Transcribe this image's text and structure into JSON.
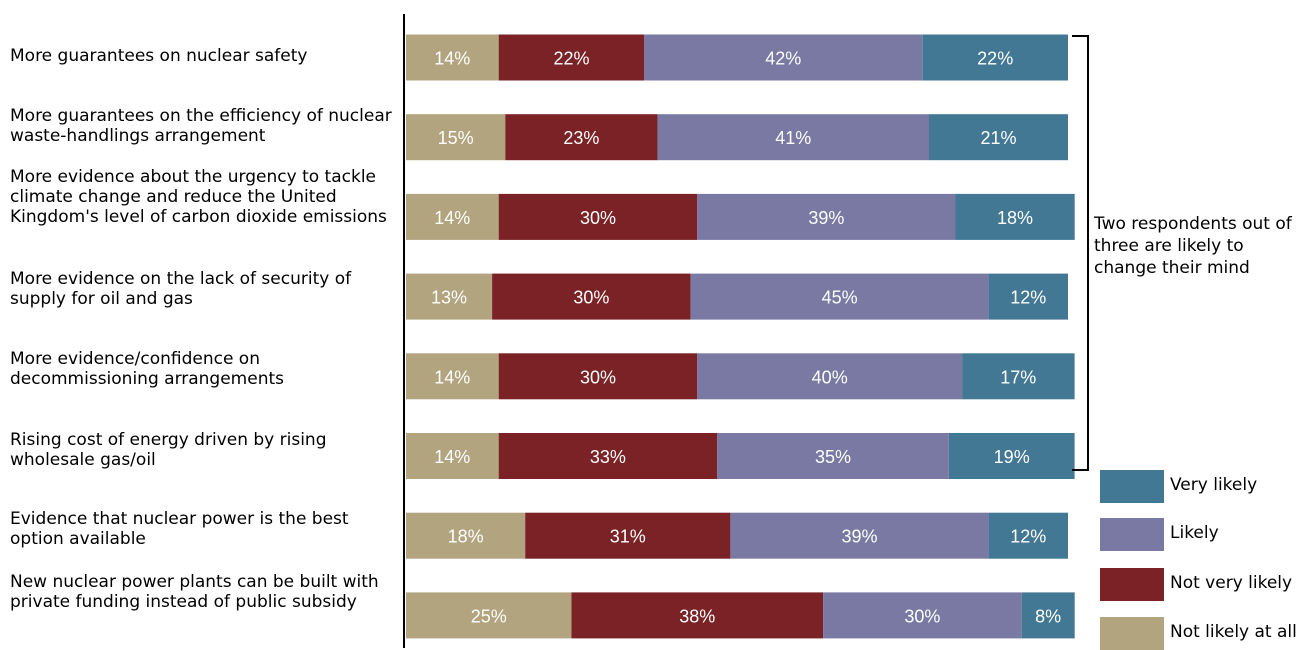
{
  "chart_data": {
    "type": "bar",
    "orientation": "horizontal",
    "stacked": true,
    "title": "",
    "xlabel": "",
    "ylabel": "",
    "xlim": [
      0,
      100
    ],
    "grid": false,
    "legend_position": "bottom-right",
    "categories": [
      "More guarantees on nuclear safety",
      "More guarantees on the efficiency of nuclear waste-handlings arrangement",
      "More evidence about the urgency to tackle climate change and reduce the United Kingdom's level of carbon dioxide emissions",
      "More evidence on the lack of security of supply for oil and gas",
      "More evidence/confidence on decommissioning arrangements",
      "Rising cost of energy driven by rising wholesale gas/oil",
      "Evidence that nuclear power is the best option available",
      "New nuclear power plants can be built with private funding instead of public subsidy"
    ],
    "series": [
      {
        "name": "Not likely at all",
        "color": "#b2a47f",
        "values": [
          14,
          15,
          14,
          13,
          14,
          14,
          18,
          25
        ]
      },
      {
        "name": "Not very likely",
        "color": "#7a2225",
        "values": [
          22,
          23,
          30,
          30,
          30,
          33,
          31,
          38
        ]
      },
      {
        "name": "Likely",
        "color": "#7a79a3",
        "values": [
          42,
          41,
          39,
          45,
          40,
          35,
          39,
          30
        ]
      },
      {
        "name": "Very likely",
        "color": "#427894",
        "values": [
          22,
          21,
          18,
          12,
          17,
          19,
          12,
          8
        ]
      }
    ],
    "legend_order": [
      "Very likely",
      "Likely",
      "Not very likely",
      "Not likely at all"
    ],
    "annotation": "Two respondents out of three are likely to change their mind",
    "value_suffix": "%"
  }
}
